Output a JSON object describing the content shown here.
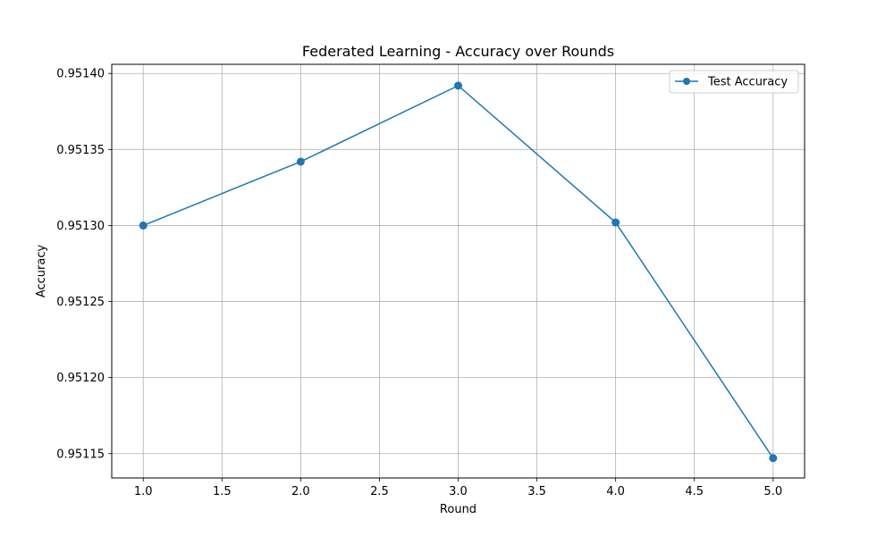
{
  "chart_data": {
    "type": "line",
    "title": "Federated Learning - Accuracy over Rounds",
    "xlabel": "Round",
    "ylabel": "Accuracy",
    "xlim": [
      0.8,
      5.2
    ],
    "ylim": [
      0.951134,
      0.951406
    ],
    "xticks": [
      1.0,
      1.5,
      2.0,
      2.5,
      3.0,
      3.5,
      4.0,
      4.5,
      5.0
    ],
    "yticks": [
      0.95115,
      0.9512,
      0.95125,
      0.9513,
      0.95135,
      0.9514
    ],
    "grid": true,
    "legend_position": "top-right",
    "series": [
      {
        "name": "Test Accuracy",
        "color": "#1f77b4",
        "marker": "circle",
        "x": [
          1,
          2,
          3,
          4,
          5
        ],
        "values": [
          0.9513,
          0.951342,
          0.951392,
          0.951302,
          0.951147
        ]
      }
    ]
  }
}
